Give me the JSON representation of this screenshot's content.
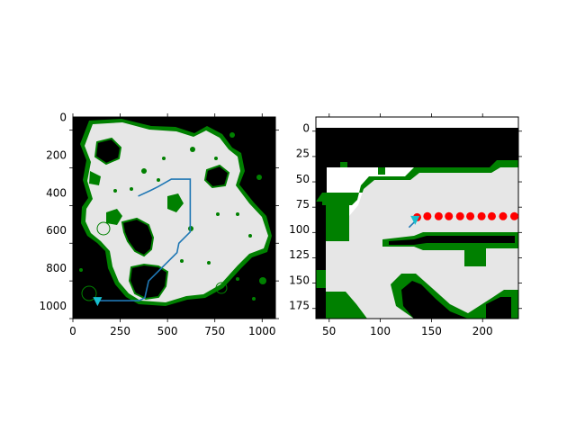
{
  "figure": {
    "colors": {
      "background": "#000000",
      "free_space": "#e6e6e6",
      "frontier": "#008000",
      "path": "#1f77b4",
      "goal_marker": "#17becf",
      "waypoints": "#ff0000"
    }
  },
  "chart_data": [
    {
      "type": "heatmap",
      "title": "",
      "xlabel": "",
      "ylabel": "",
      "xlim": [
        0,
        1070
      ],
      "ylim": [
        1070,
        0
      ],
      "x_ticks": [
        0,
        250,
        500,
        750,
        1000
      ],
      "y_ticks": [
        0,
        200,
        400,
        600,
        800,
        1000
      ],
      "x_tick_labels": [
        "0",
        "250",
        "500",
        "750",
        "1000"
      ],
      "y_tick_labels": [
        "0",
        "200",
        "400",
        "600",
        "800",
        "1000"
      ],
      "overlays": [
        {
          "type": "line",
          "color": "#1f77b4",
          "points": [
            [
              130,
              95
            ],
            [
              350,
              95
            ],
            [
              380,
              110
            ],
            [
              400,
              200
            ],
            [
              550,
              350
            ],
            [
              560,
              400
            ],
            [
              620,
              460
            ],
            [
              620,
              740
            ],
            [
              520,
              740
            ],
            [
              450,
              700
            ],
            [
              410,
              680
            ],
            [
              345,
              650
            ]
          ]
        },
        {
          "type": "marker",
          "shape": "triangle-down",
          "color": "#17becf",
          "point": [
            130,
            90
          ]
        }
      ]
    },
    {
      "type": "heatmap",
      "title": "",
      "xlabel": "",
      "ylabel": "",
      "xlim": [
        37,
        235
      ],
      "ylim": [
        189,
        -10
      ],
      "x_ticks": [
        50,
        100,
        150,
        200
      ],
      "y_ticks": [
        0,
        25,
        50,
        75,
        100,
        125,
        150,
        175
      ],
      "x_tick_labels": [
        "50",
        "100",
        "150",
        "200"
      ],
      "y_tick_labels": [
        "0",
        "25",
        "50",
        "75",
        "100",
        "125",
        "150",
        "175"
      ],
      "overlays": [
        {
          "type": "line",
          "color": "#1f77b4",
          "points": [
            [
              128,
              80
            ],
            [
              134,
              86
            ],
            [
              136,
              90
            ]
          ]
        },
        {
          "type": "marker",
          "shape": "circle",
          "color": "#ff0000",
          "points": [
            [
              136,
              90
            ],
            [
              146,
              91
            ],
            [
              157,
              91
            ],
            [
              167,
              91
            ],
            [
              178,
              91
            ],
            [
              188,
              91
            ],
            [
              199,
              91
            ],
            [
              209,
              91
            ],
            [
              220,
              91
            ],
            [
              231,
              91
            ]
          ]
        },
        {
          "type": "marker",
          "shape": "triangle-down",
          "color": "#17becf",
          "point": [
            134,
            87
          ]
        }
      ]
    }
  ]
}
